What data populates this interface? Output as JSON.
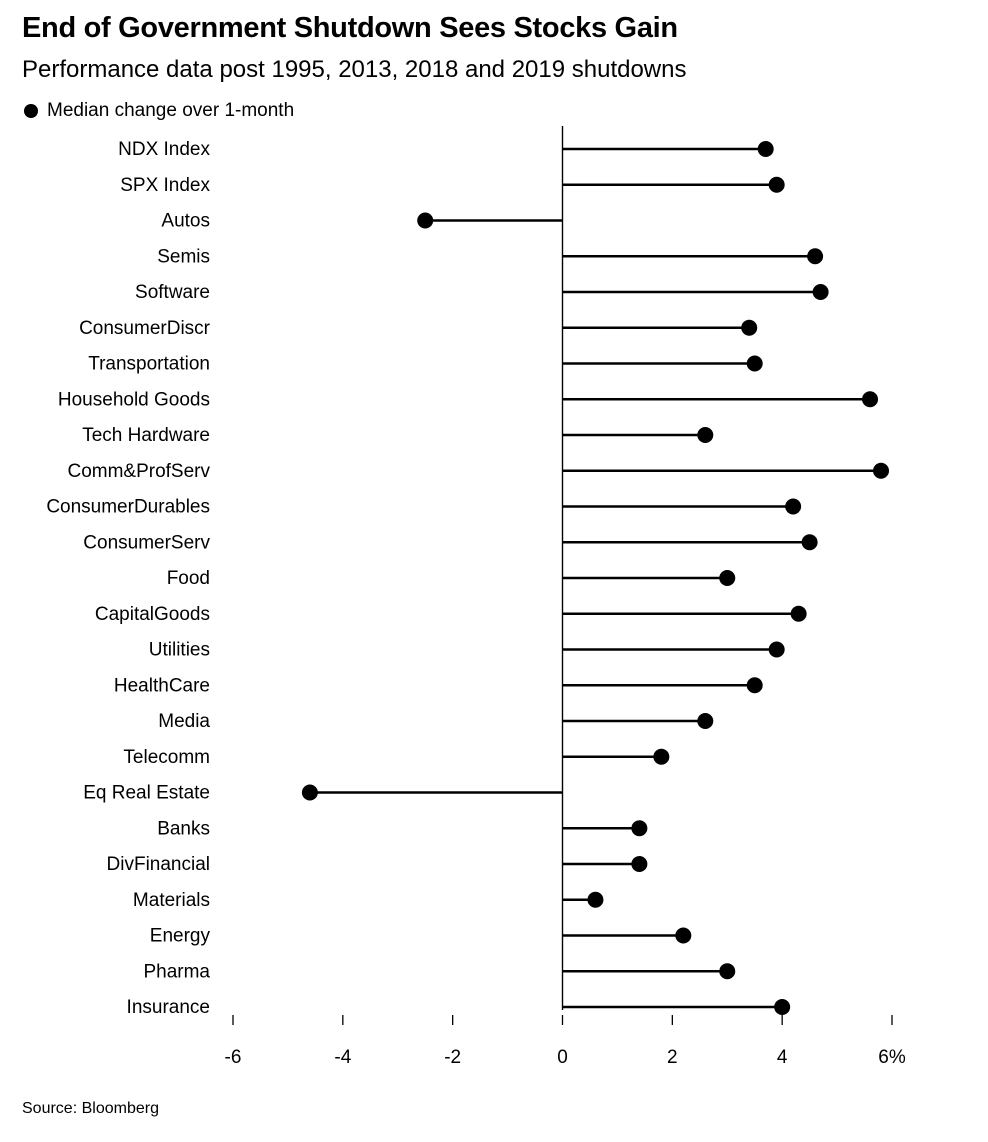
{
  "title": "End of Government Shutdown Sees Stocks Gain",
  "subtitle": "Performance data post 1995, 2013, 2018 and 2019 shutdowns",
  "legend": "Median change over 1-month",
  "source": "Source: Bloomberg",
  "chart_data": {
    "type": "lollipop",
    "orientation": "horizontal",
    "series_name": "Median change over 1-month",
    "categories": [
      "NDX Index",
      "SPX Index",
      "Autos",
      "Semis",
      "Software",
      "ConsumerDiscr",
      "Transportation",
      "Household Goods",
      "Tech Hardware",
      "Comm&ProfServ",
      "ConsumerDurables",
      "ConsumerServ",
      "Food",
      "CapitalGoods",
      "Utilities",
      "HealthCare",
      "Media",
      "Telecomm",
      "Eq Real Estate",
      "Banks",
      "DivFinancial",
      "Materials",
      "Energy",
      "Pharma",
      "Insurance"
    ],
    "values": [
      3.7,
      3.9,
      -2.5,
      4.6,
      4.7,
      3.4,
      3.5,
      5.6,
      2.6,
      5.8,
      4.2,
      4.5,
      3.0,
      4.3,
      3.9,
      3.5,
      2.6,
      1.8,
      -4.6,
      1.4,
      1.4,
      0.6,
      2.2,
      3.0,
      4.0
    ],
    "xlim": [
      -6,
      6
    ],
    "xticks": [
      -6,
      -4,
      -2,
      0,
      2,
      4,
      6
    ],
    "xtick_labels": [
      "-6",
      "-4",
      "-2",
      "0",
      "2",
      "4",
      "6%"
    ],
    "xlabel": "",
    "ylabel": "",
    "grid": false
  }
}
